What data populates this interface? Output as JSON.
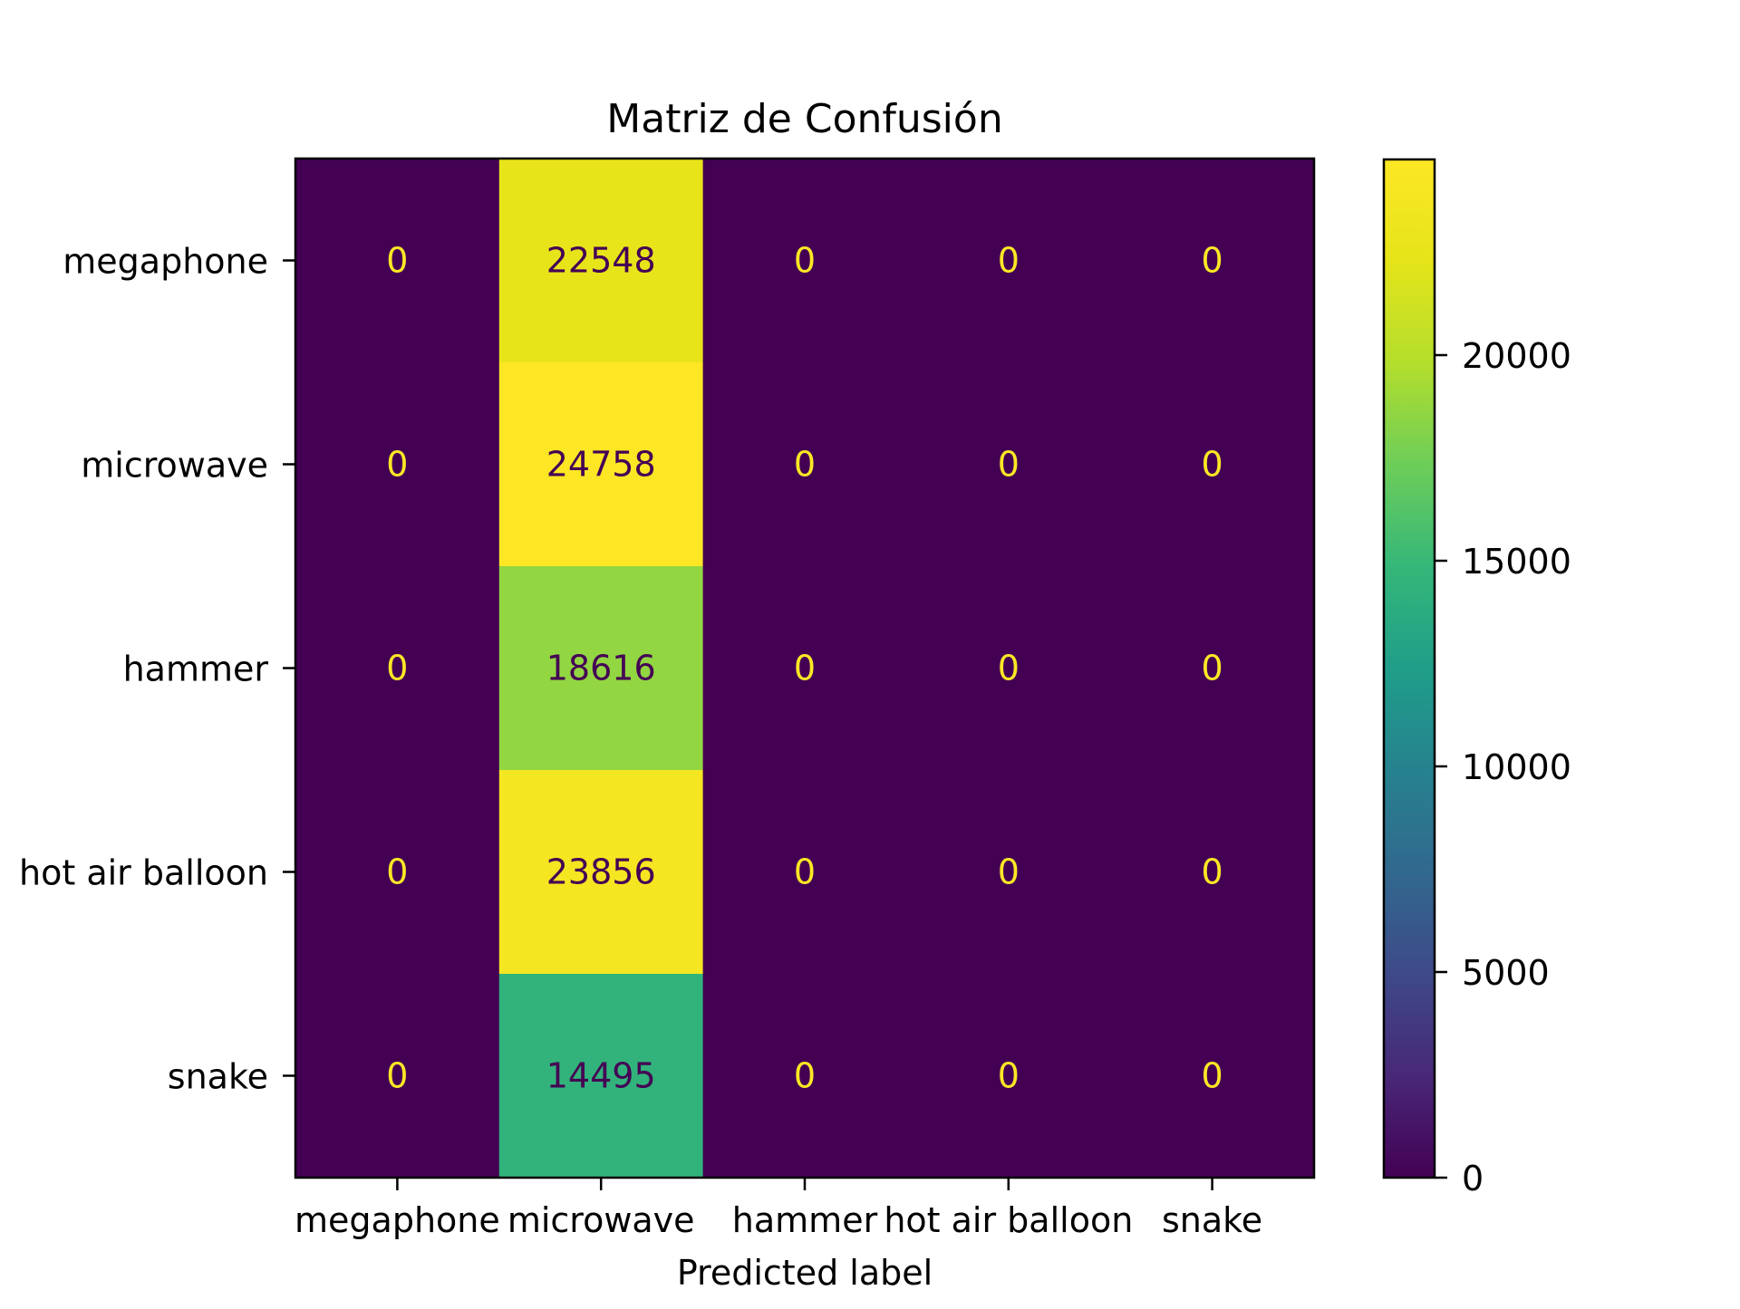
{
  "chart_data": {
    "type": "heatmap",
    "title": "Matriz de Confusión",
    "xlabel": "Predicted label",
    "ylabel": "",
    "x_categories": [
      "megaphone",
      "microwave",
      "hammer",
      "hot air balloon",
      "snake"
    ],
    "y_categories": [
      "megaphone",
      "microwave",
      "hammer",
      "hot air balloon",
      "snake"
    ],
    "values": [
      [
        0,
        22548,
        0,
        0,
        0
      ],
      [
        0,
        24758,
        0,
        0,
        0
      ],
      [
        0,
        18616,
        0,
        0,
        0
      ],
      [
        0,
        23856,
        0,
        0,
        0
      ],
      [
        0,
        14495,
        0,
        0,
        0
      ]
    ],
    "colormap": "viridis",
    "colorbar": {
      "range": [
        0,
        24758
      ],
      "ticks": [
        0,
        5000,
        10000,
        15000,
        20000
      ]
    },
    "colors": {
      "low_text": "#fde725",
      "high_text": "#440154"
    },
    "grid": false
  }
}
